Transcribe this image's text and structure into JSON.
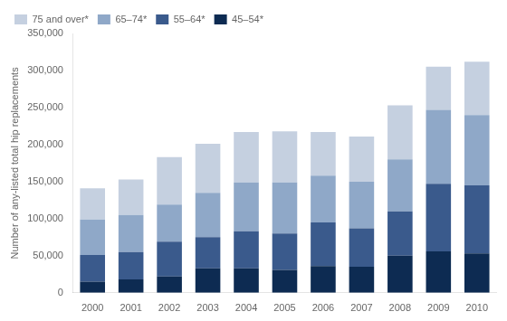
{
  "chart_data": {
    "type": "bar",
    "stacked": true,
    "ylabel": "Number of any-listed total hip replacements",
    "categories": [
      "2000",
      "2001",
      "2002",
      "2003",
      "2004",
      "2005",
      "2006",
      "2007",
      "2008",
      "2009",
      "2010"
    ],
    "series": [
      {
        "name": "45–54*",
        "color": "#0d2b52",
        "values": [
          15000,
          18000,
          22000,
          33000,
          33000,
          31000,
          36000,
          35000,
          50000,
          56000,
          53000
        ]
      },
      {
        "name": "55–64*",
        "color": "#3a5a8c",
        "values": [
          36000,
          37000,
          47000,
          42000,
          50000,
          49000,
          59000,
          52000,
          60000,
          91000,
          92000
        ]
      },
      {
        "name": "65–74*",
        "color": "#8fa8c8",
        "values": [
          48000,
          50000,
          50000,
          60000,
          66000,
          69000,
          63000,
          63000,
          70000,
          100000,
          95000
        ]
      },
      {
        "name": "75 and over*",
        "color": "#c5d0e0",
        "values": [
          42000,
          48000,
          64000,
          66000,
          68000,
          69000,
          59000,
          61000,
          73000,
          58000,
          72000
        ]
      }
    ],
    "ylim": [
      0,
      350000
    ],
    "yticks": [
      0,
      {
        "value": 50000,
        "label": "50,000"
      },
      {
        "value": 100000,
        "label": "100,000"
      },
      {
        "value": 150000,
        "label": "150,000"
      },
      {
        "value": 200000,
        "label": "200,000"
      },
      {
        "value": 250000,
        "label": "250,000"
      },
      {
        "value": 300000,
        "label": "300,000"
      },
      {
        "value": 350000,
        "label": "350,000"
      }
    ],
    "grid": false,
    "legend": "upper left"
  }
}
